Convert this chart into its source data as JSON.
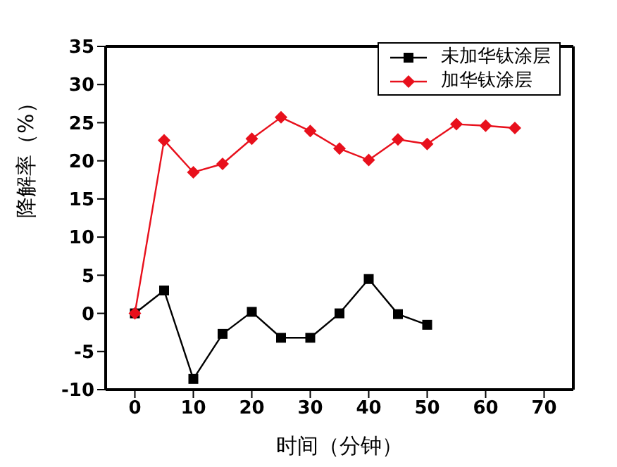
{
  "chart_data": {
    "type": "line",
    "xlabel": "时间（分钟）",
    "ylabel": "降解率（%）",
    "xlim": [
      -5,
      75
    ],
    "xticks": [
      0,
      10,
      20,
      30,
      40,
      50,
      60,
      70
    ],
    "ylim": [
      -10,
      35
    ],
    "yticks": [
      -10,
      -5,
      0,
      5,
      10,
      15,
      20,
      25,
      30,
      35
    ],
    "legend": "top right",
    "series": [
      {
        "name": "未加华钛涂层",
        "color": "#000000",
        "marker": "square",
        "x": [
          0,
          5,
          10,
          15,
          20,
          25,
          30,
          35,
          40,
          45,
          50
        ],
        "values": [
          0,
          3,
          -8.6,
          -2.7,
          0.2,
          -3.2,
          -3.2,
          0,
          4.5,
          -0.1,
          -1.5
        ]
      },
      {
        "name": "加华钛涂层",
        "color": "#e8101c",
        "marker": "diamond",
        "x": [
          0,
          5,
          10,
          15,
          20,
          25,
          30,
          35,
          40,
          45,
          50,
          55,
          60,
          65
        ],
        "values": [
          0,
          22.7,
          18.5,
          19.6,
          22.9,
          25.7,
          23.9,
          21.6,
          20.1,
          22.8,
          22.2,
          24.8,
          24.6,
          24.3
        ]
      }
    ]
  }
}
